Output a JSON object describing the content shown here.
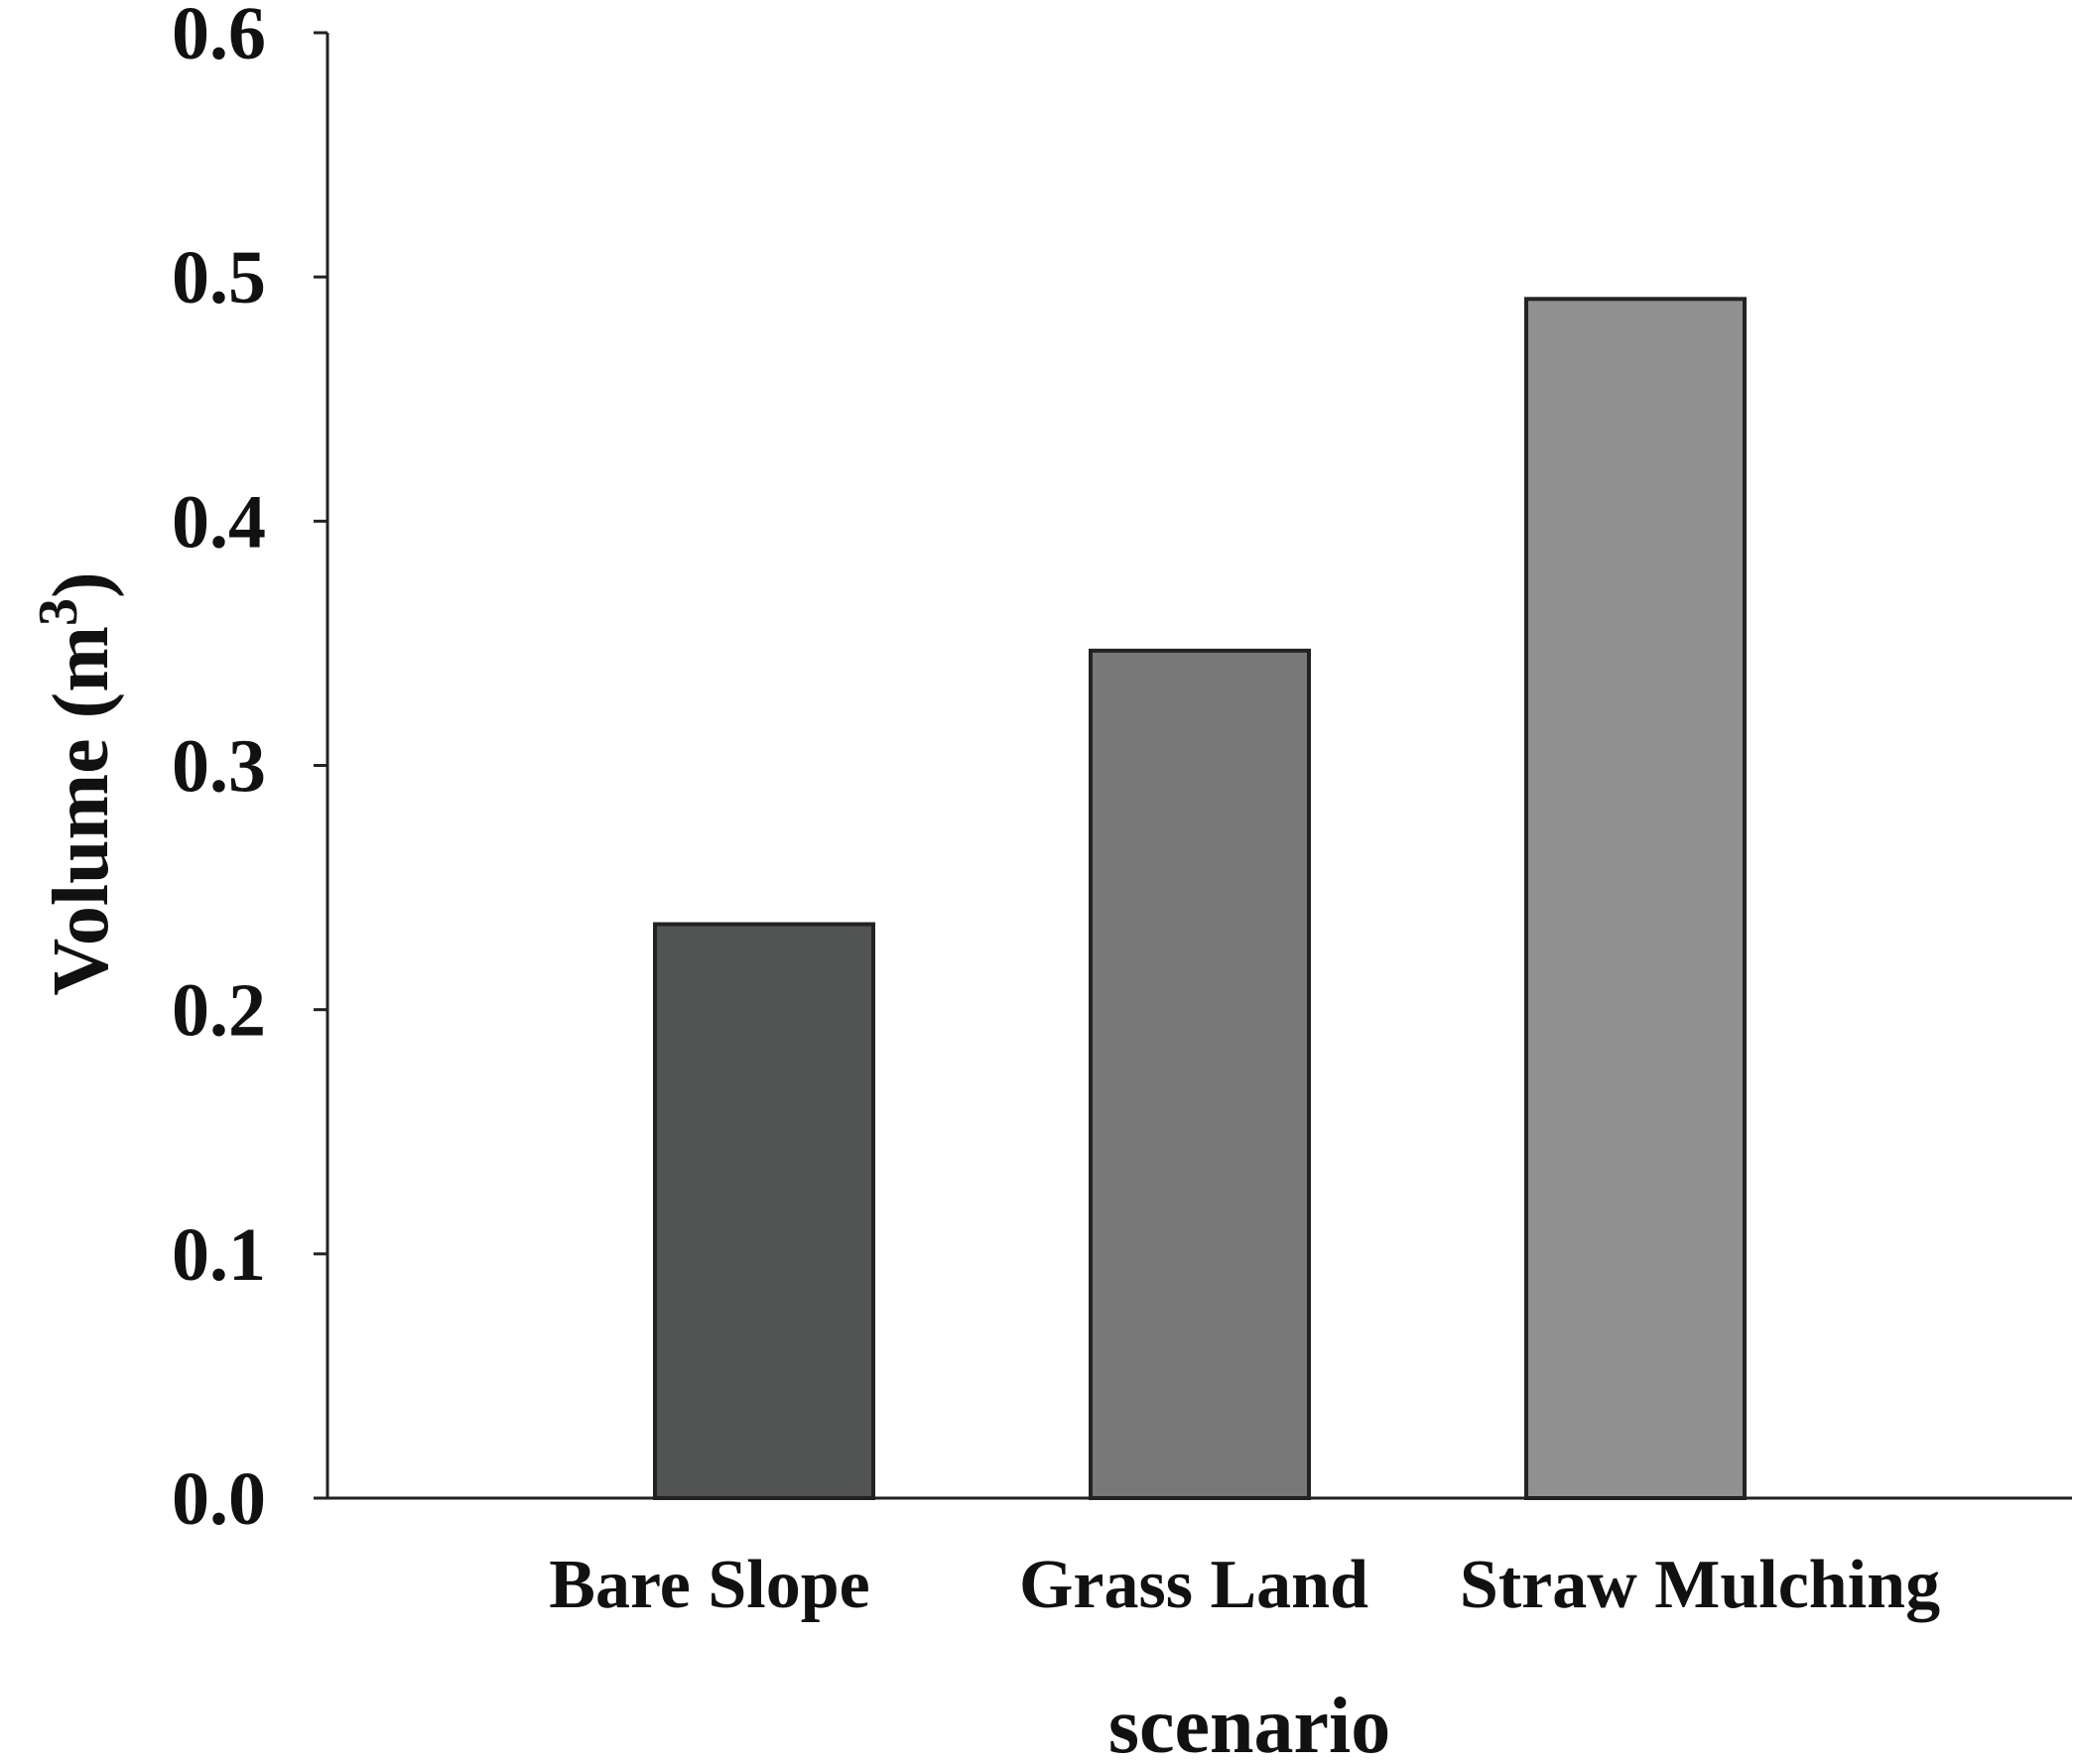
{
  "chart_data": {
    "type": "bar",
    "categories": [
      "Bare Slope",
      "Grass Land",
      "Straw Mulching"
    ],
    "values": [
      0.235,
      0.347,
      0.491
    ],
    "xlabel": "scenario",
    "ylabel": "Volume (m",
    "ylabel_superscript": "3",
    "ylabel_close": ")",
    "ylim": [
      0,
      0.6
    ],
    "yticks": [
      "0.0",
      "0.1",
      "0.2",
      "0.3",
      "0.4",
      "0.5",
      "0.6"
    ],
    "colors": [
      "#525453",
      "#787878",
      "#919191"
    ],
    "grid": false
  }
}
